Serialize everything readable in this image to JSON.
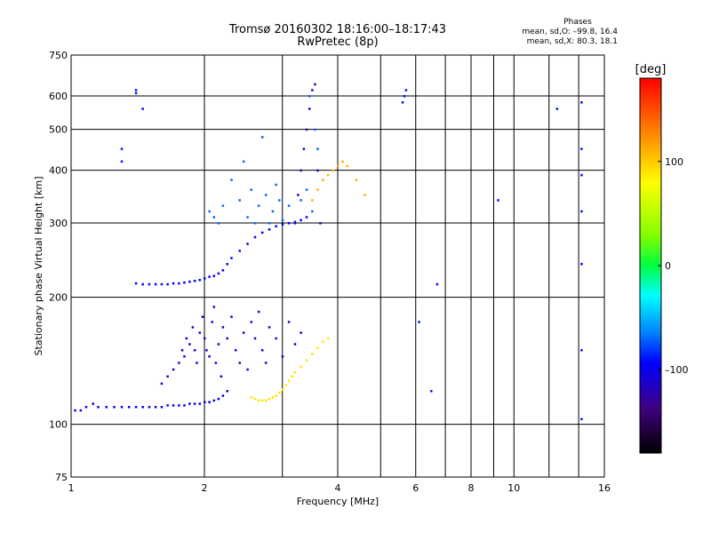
{
  "chart_data": {
    "type": "scatter",
    "title": "Tromsø 20160302 18:16:00–18:17:43",
    "subtitle": "RwPretec (8p)",
    "xlabel": "Frequency [MHz]",
    "ylabel": "Stationary phase Virtual Height [km]",
    "x_scale": "log",
    "y_scale": "log",
    "xlim": [
      1,
      16
    ],
    "ylim": [
      75,
      750
    ],
    "x_ticks": [
      1,
      2,
      4,
      6,
      8,
      10,
      16
    ],
    "x_tick_labels": [
      "1",
      "2",
      "4",
      "6",
      "8",
      "10",
      "16"
    ],
    "x_minor_ticks": [
      3,
      5,
      7,
      9,
      12,
      14
    ],
    "y_ticks": [
      75,
      100,
      200,
      300,
      400,
      500,
      600,
      750
    ],
    "y_tick_labels": [
      "75",
      "100",
      "200",
      "300",
      "400",
      "500",
      "600",
      "750"
    ],
    "grid": true,
    "phase_stats": {
      "header": "Phases",
      "line_o": "mean, sd,O: –99.8, 16.4",
      "line_x": "mean, sd,X:  80.3, 18.1"
    },
    "colorbar": {
      "label": "[deg]",
      "range": [
        -180,
        180
      ],
      "ticks": [
        100,
        0,
        -100
      ],
      "tick_labels": [
        "100",
        "0",
        "–100"
      ],
      "colors_top_to_bottom": [
        "#ff0000",
        "#ff7f00",
        "#ffff00",
        "#7fff00",
        "#00ff00",
        "#00ffff",
        "#007fff",
        "#0000ff",
        "#3f00bf",
        "#000000"
      ]
    },
    "series": [
      {
        "trace": "o_mode_e_layer",
        "phase_deg": -100,
        "x": [
          1.02,
          1.05,
          1.08,
          1.12,
          1.15,
          1.2,
          1.25,
          1.3,
          1.35,
          1.4,
          1.45,
          1.5,
          1.55,
          1.6,
          1.65,
          1.7,
          1.75,
          1.8,
          1.85,
          1.9,
          1.95,
          2.0,
          2.05,
          2.1,
          2.15,
          2.2,
          2.25
        ],
        "y": [
          108,
          108,
          110,
          112,
          110,
          110,
          110,
          110,
          110,
          110,
          110,
          110,
          110,
          110,
          111,
          111,
          111,
          111,
          112,
          112,
          112,
          113,
          113,
          114,
          115,
          117,
          120
        ]
      },
      {
        "trace": "o_mode_e_spread",
        "phase_deg": -110,
        "x": [
          1.6,
          1.65,
          1.7,
          1.75,
          1.78,
          1.8,
          1.82,
          1.85,
          1.88,
          1.9,
          1.92,
          1.95,
          1.98,
          2.0,
          2.02,
          2.05,
          2.08,
          2.1,
          2.12,
          2.15,
          2.18,
          2.2,
          2.25,
          2.3,
          2.35,
          2.4,
          2.45,
          2.5,
          2.55,
          2.6,
          2.65,
          2.7,
          2.75,
          2.8,
          2.9,
          3.0,
          3.1,
          3.2,
          3.3
        ],
        "y": [
          125,
          130,
          135,
          140,
          150,
          145,
          160,
          155,
          170,
          150,
          140,
          165,
          180,
          160,
          150,
          145,
          175,
          190,
          140,
          155,
          130,
          170,
          160,
          180,
          150,
          140,
          165,
          135,
          175,
          160,
          185,
          150,
          140,
          170,
          160,
          145,
          175,
          155,
          165
        ]
      },
      {
        "trace": "x_mode_e_layer",
        "phase_deg": 90,
        "x": [
          2.55,
          2.6,
          2.65,
          2.7,
          2.75,
          2.8,
          2.85,
          2.9,
          2.95,
          3.0,
          3.05,
          3.1,
          3.15,
          3.2,
          3.3,
          3.4,
          3.5,
          3.6,
          3.7,
          3.8
        ],
        "y": [
          116,
          115,
          114,
          114,
          114,
          115,
          116,
          117,
          119,
          121,
          124,
          127,
          130,
          133,
          137,
          142,
          147,
          152,
          157,
          160
        ]
      },
      {
        "trace": "o_mode_f_layer",
        "phase_deg": -95,
        "x": [
          1.4,
          1.45,
          1.5,
          1.55,
          1.6,
          1.65,
          1.7,
          1.75,
          1.8,
          1.85,
          1.9,
          1.95,
          2.0,
          2.05,
          2.1,
          2.15,
          2.2,
          2.25,
          2.3,
          2.4,
          2.5,
          2.6,
          2.7,
          2.8,
          2.9,
          3.0,
          3.1,
          3.2,
          3.3,
          3.4
        ],
        "y": [
          216,
          215,
          215,
          215,
          215,
          215,
          216,
          216,
          217,
          218,
          219,
          220,
          222,
          224,
          225,
          228,
          232,
          240,
          248,
          258,
          268,
          278,
          285,
          290,
          295,
          298,
          300,
          302,
          305,
          310
        ]
      },
      {
        "trace": "o_mode_f_spread",
        "phase_deg": -70,
        "x": [
          2.05,
          2.1,
          2.15,
          2.2,
          2.3,
          2.4,
          2.45,
          2.5,
          2.55,
          2.6,
          2.65,
          2.7,
          2.75,
          2.8,
          2.85,
          2.9,
          2.95,
          3.0,
          3.1,
          3.2,
          3.3,
          3.4,
          3.45,
          3.5,
          3.55,
          3.6
        ],
        "y": [
          320,
          310,
          300,
          330,
          380,
          340,
          420,
          310,
          360,
          300,
          330,
          480,
          350,
          300,
          320,
          370,
          340,
          305,
          330,
          300,
          340,
          360,
          600,
          320,
          500,
          450
        ]
      },
      {
        "trace": "o_mode_f_spur",
        "phase_deg": -120,
        "x": [
          3.2,
          3.25,
          3.3,
          3.35,
          3.4,
          3.45,
          3.5,
          3.55,
          3.6,
          3.65
        ],
        "y": [
          300,
          350,
          400,
          450,
          500,
          560,
          620,
          640,
          400,
          300
        ]
      },
      {
        "trace": "x_mode_f_layer",
        "phase_deg": 110,
        "x": [
          3.5,
          3.6,
          3.7,
          3.8,
          3.9,
          4.0,
          4.1,
          4.2,
          4.4,
          4.6
        ],
        "y": [
          340,
          360,
          380,
          390,
          400,
          410,
          420,
          410,
          380,
          350
        ]
      },
      {
        "trace": "scattered_echoes",
        "phase_deg": -90,
        "x": [
          1.3,
          1.3,
          1.4,
          1.4,
          1.45,
          5.6,
          5.65,
          5.7,
          6.1,
          6.5,
          6.7,
          9.2,
          12.5,
          14.2,
          14.2,
          14.2,
          14.2,
          14.2,
          14.2,
          14.2
        ],
        "y": [
          420,
          450,
          610,
          620,
          560,
          580,
          600,
          620,
          175,
          120,
          215,
          340,
          560,
          580,
          450,
          390,
          320,
          240,
          150,
          103
        ]
      }
    ]
  }
}
